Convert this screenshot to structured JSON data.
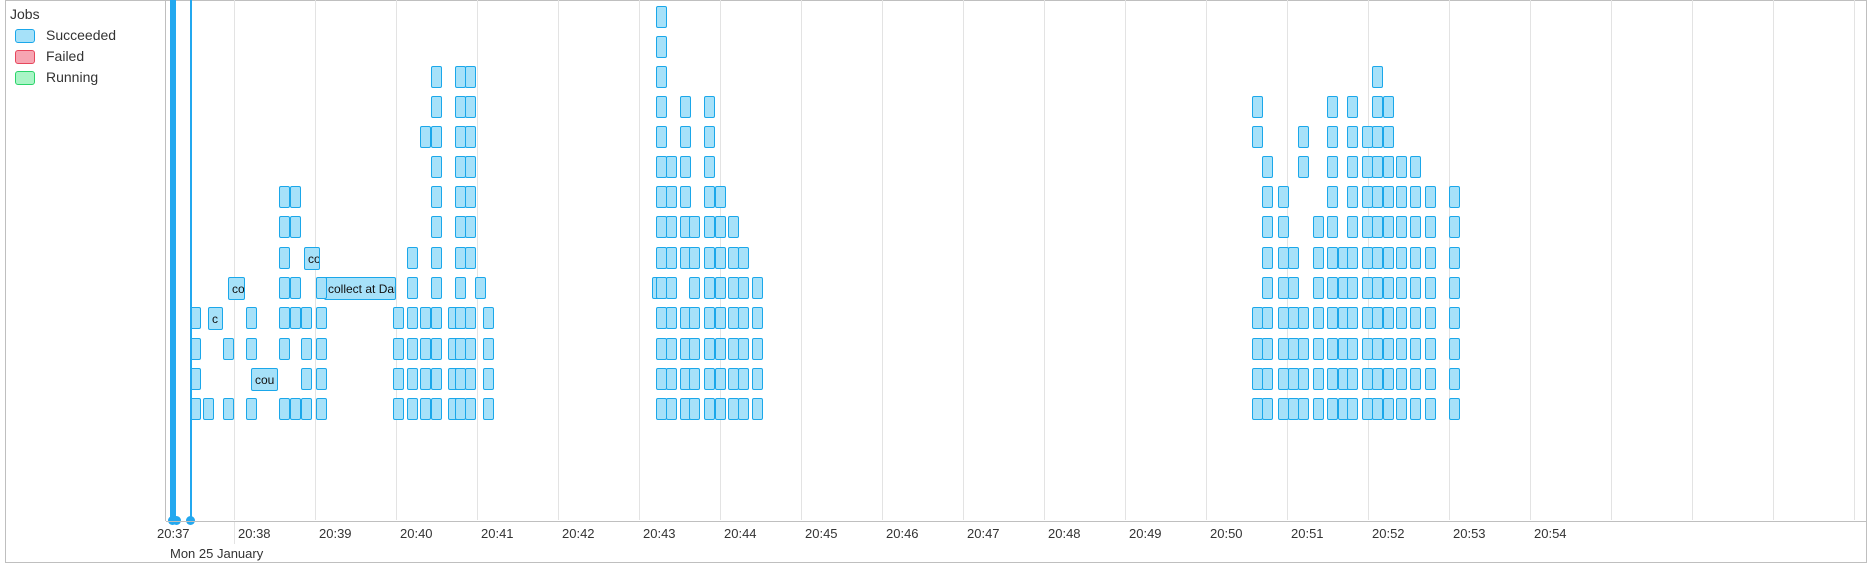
{
  "legend": {
    "title": "Jobs",
    "items": [
      {
        "label": "Succeeded",
        "fill": "#a6e1f9",
        "stroke": "#1aa7ea"
      },
      {
        "label": "Failed",
        "fill": "#f7a5b2",
        "stroke": "#e6475c"
      },
      {
        "label": "Running",
        "fill": "#a9f5c6",
        "stroke": "#2bd46a"
      }
    ]
  },
  "axis": {
    "ticks": [
      "20:37",
      "20:38",
      "20:39",
      "20:40",
      "20:41",
      "20:42",
      "20:43",
      "20:44",
      "20:45",
      "20:46",
      "20:47",
      "20:48",
      "20:49",
      "20:50",
      "20:51",
      "20:52",
      "20:53",
      "20:54"
    ],
    "date_label": "Mon 25 January"
  },
  "job_labels": {
    "collect_at_dan": "collect at Dan",
    "cou": "cou",
    "co_a": "co",
    "co_b": "co",
    "c": "c"
  }
}
